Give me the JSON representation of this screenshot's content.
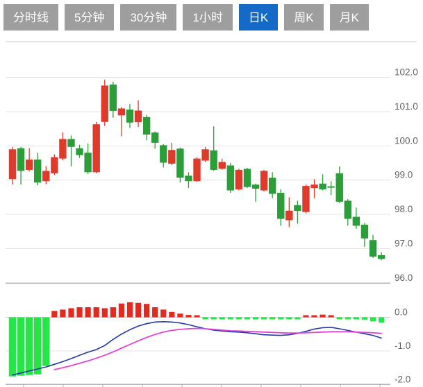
{
  "tabs": {
    "items": [
      {
        "label": "分时线",
        "active": false
      },
      {
        "label": "5分钟",
        "active": false
      },
      {
        "label": "30分钟",
        "active": false
      },
      {
        "label": "1小时",
        "active": false
      },
      {
        "label": "日K",
        "active": true
      },
      {
        "label": "周K",
        "active": false
      },
      {
        "label": "月K",
        "active": false
      }
    ]
  },
  "colors": {
    "tab_inactive_bg": "#9e9e9e",
    "tab_active_bg": "#1569c7",
    "tab_text": "#ffffff",
    "candle_up": "#df3a2b",
    "candle_down": "#2b9e3a",
    "macd_bar_up": "#e6281e",
    "macd_bar_down": "#22e745",
    "dif_line": "#2237a8",
    "dea_line": "#e046d2",
    "grid_line": "#e3e3e3",
    "axis_line": "#b4b4b4",
    "frame_line": "#c9c9c9",
    "tick_label": "#616161"
  },
  "chart_data": {
    "type": "candlestick+macd",
    "legend_position": "none",
    "grid": true,
    "main_panel": {
      "ylim": [
        96.0,
        103.05
      ],
      "grid_values": [
        102,
        101,
        100,
        99,
        98,
        97,
        96
      ],
      "ytick_labels": [
        "102.0",
        "101.0",
        "100.0",
        "99.0",
        "98.0",
        "97.0",
        "96.0"
      ],
      "candles_ohlc": [
        [
          99.03,
          99.97,
          98.87,
          99.9
        ],
        [
          99.93,
          99.97,
          98.87,
          99.27
        ],
        [
          99.3,
          99.93,
          99.25,
          99.6
        ],
        [
          99.6,
          99.8,
          98.85,
          98.93
        ],
        [
          98.97,
          99.41,
          98.88,
          99.27
        ],
        [
          99.2,
          99.75,
          99.15,
          99.67
        ],
        [
          99.63,
          100.4,
          99.58,
          100.2
        ],
        [
          100.2,
          100.3,
          99.4,
          99.97
        ],
        [
          99.93,
          100.03,
          99.65,
          99.73
        ],
        [
          99.8,
          100.07,
          99.18,
          99.23
        ],
        [
          99.23,
          100.7,
          99.2,
          100.63
        ],
        [
          100.7,
          101.93,
          100.58,
          101.76
        ],
        [
          101.79,
          101.87,
          100.82,
          101.02
        ],
        [
          100.89,
          101.14,
          100.28,
          101.09
        ],
        [
          101.06,
          101.22,
          100.52,
          100.68
        ],
        [
          100.69,
          101.33,
          100.55,
          101.03
        ],
        [
          100.84,
          100.9,
          100.16,
          100.33
        ],
        [
          100.39,
          100.42,
          99.92,
          100.09
        ],
        [
          100.02,
          100.05,
          99.37,
          99.51
        ],
        [
          99.48,
          100.09,
          99.44,
          99.88
        ],
        [
          99.92,
          99.95,
          98.93,
          99.07
        ],
        [
          99.13,
          99.23,
          98.77,
          98.97
        ],
        [
          98.97,
          99.67,
          98.95,
          99.63
        ],
        [
          99.57,
          99.97,
          99.53,
          99.9
        ],
        [
          99.87,
          100.57,
          99.27,
          99.3
        ],
        [
          99.33,
          99.63,
          99.3,
          99.53
        ],
        [
          99.43,
          99.5,
          98.63,
          98.7
        ],
        [
          98.73,
          99.33,
          98.7,
          99.3
        ],
        [
          99.33,
          99.36,
          98.77,
          98.8
        ],
        [
          98.87,
          98.9,
          98.37,
          98.75
        ],
        [
          98.7,
          99.3,
          98.67,
          99.27
        ],
        [
          99.07,
          99.23,
          98.47,
          98.6
        ],
        [
          98.63,
          98.73,
          97.67,
          97.87
        ],
        [
          97.83,
          98.5,
          97.63,
          98.11
        ],
        [
          98.27,
          98.4,
          97.73,
          98.1
        ],
        [
          98.07,
          98.87,
          98.03,
          98.83
        ],
        [
          98.77,
          99.03,
          98.47,
          98.87
        ],
        [
          98.9,
          99.17,
          98.7,
          98.73
        ],
        [
          98.82,
          98.97,
          98.57,
          98.78
        ],
        [
          99.2,
          99.4,
          98.33,
          98.37
        ],
        [
          98.4,
          98.45,
          97.67,
          97.87
        ],
        [
          97.93,
          98.2,
          97.58,
          97.67
        ],
        [
          97.7,
          97.75,
          97.05,
          97.3
        ],
        [
          97.25,
          97.4,
          96.73,
          96.77
        ],
        [
          96.81,
          96.9,
          96.66,
          96.7
        ]
      ]
    },
    "macd_panel": {
      "ylim": [
        -2.0,
        0.5
      ],
      "grid_values": [
        0,
        -1,
        -2
      ],
      "ytick_labels": [
        "0.0",
        "-1.0",
        "-2.0"
      ],
      "histogram": [
        -1.76,
        -1.74,
        -1.72,
        -1.7,
        -1.45,
        0.19,
        0.23,
        0.27,
        0.3,
        0.3,
        0.3,
        0.27,
        0.3,
        0.41,
        0.45,
        0.43,
        0.4,
        0.3,
        0.23,
        0.16,
        0.11,
        0.07,
        0.03,
        -0.04,
        -0.05,
        -0.05,
        -0.05,
        -0.04,
        -0.03,
        -0.02,
        -0.05,
        -0.05,
        -0.06,
        -0.04,
        -0.02,
        0.03,
        0.06,
        0.08,
        0.05,
        -0.02,
        -0.04,
        -0.05,
        -0.07,
        -0.12,
        -0.16
      ],
      "dif_line": [
        -1.72,
        -1.66,
        -1.6,
        -1.54,
        -1.48,
        -1.4,
        -1.32,
        -1.23,
        -1.13,
        -1.04,
        -0.96,
        -0.84,
        -0.66,
        -0.5,
        -0.37,
        -0.26,
        -0.19,
        -0.14,
        -0.13,
        -0.14,
        -0.17,
        -0.22,
        -0.28,
        -0.34,
        -0.38,
        -0.41,
        -0.43,
        -0.44,
        -0.46,
        -0.49,
        -0.52,
        -0.53,
        -0.54,
        -0.52,
        -0.48,
        -0.42,
        -0.35,
        -0.31,
        -0.3,
        -0.34,
        -0.39,
        -0.44,
        -0.49,
        -0.54,
        -0.62
      ],
      "dea_line": [
        null,
        null,
        null,
        null,
        null,
        -1.56,
        -1.5,
        -1.44,
        -1.37,
        -1.3,
        -1.22,
        -1.13,
        -1.03,
        -0.92,
        -0.81,
        -0.7,
        -0.6,
        -0.51,
        -0.44,
        -0.39,
        -0.36,
        -0.34,
        -0.33,
        -0.34,
        -0.36,
        -0.38,
        -0.4,
        -0.41,
        -0.42,
        -0.43,
        -0.44,
        -0.45,
        -0.46,
        -0.47,
        -0.47,
        -0.46,
        -0.45,
        -0.44,
        -0.43,
        -0.43,
        -0.43,
        -0.44,
        -0.45,
        -0.46,
        -0.48
      ]
    }
  }
}
